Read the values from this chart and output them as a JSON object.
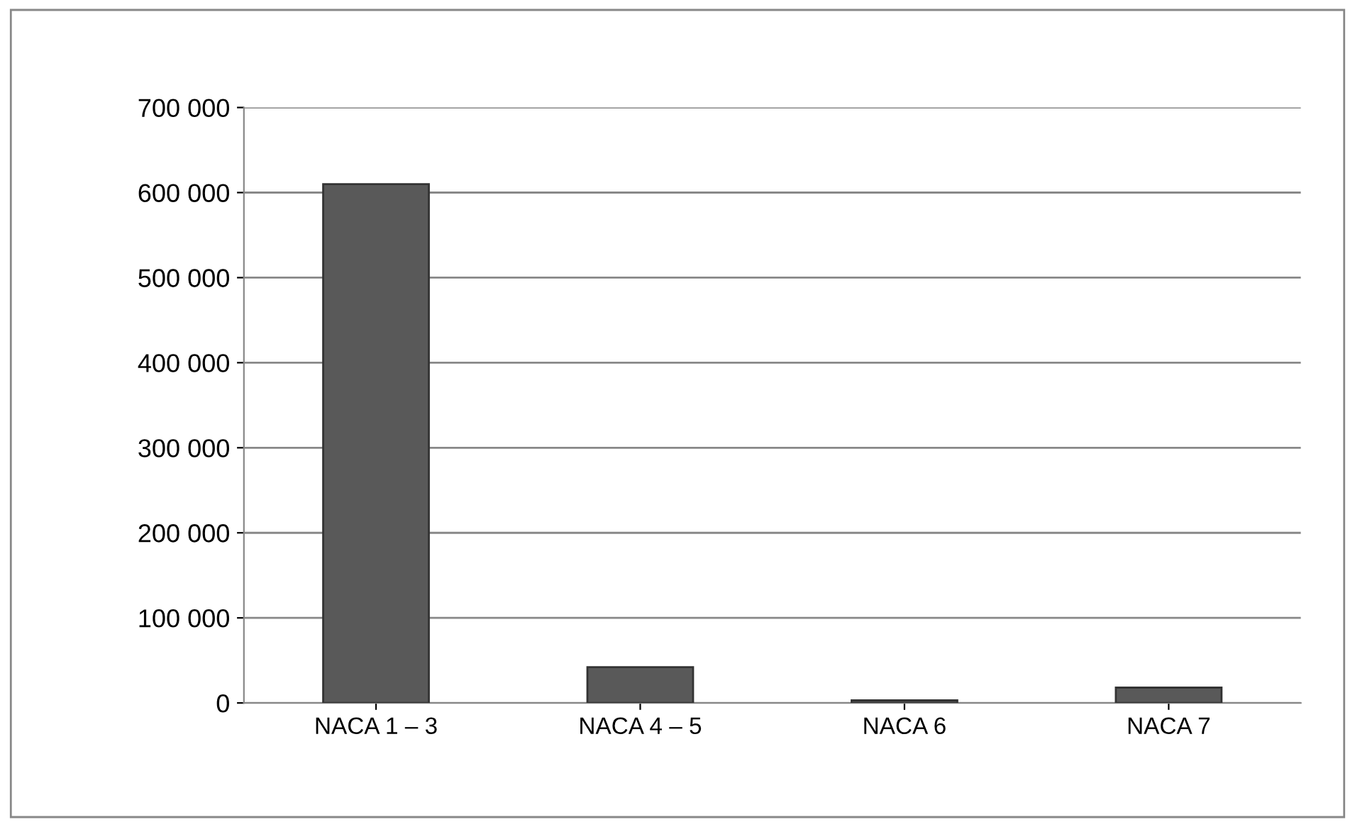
{
  "chart_data": {
    "type": "bar",
    "categories": [
      "NACA 1 – 3",
      "NACA 4 – 5",
      "NACA 6",
      "NACA 7"
    ],
    "values": [
      610000,
      42000,
      3000,
      18000
    ],
    "color": "#595959",
    "ylim": [
      0,
      700000
    ],
    "yticks": [
      {
        "value": 0,
        "label": "0"
      },
      {
        "value": 100000,
        "label": "100 000"
      },
      {
        "value": 200000,
        "label": "200 000"
      },
      {
        "value": 300000,
        "label": "300 000"
      },
      {
        "value": 400000,
        "label": "400 000"
      },
      {
        "value": 500000,
        "label": "500 000"
      },
      {
        "value": 600000,
        "label": "600 000"
      },
      {
        "value": 700000,
        "label": "700 000"
      }
    ],
    "grid": "y"
  }
}
